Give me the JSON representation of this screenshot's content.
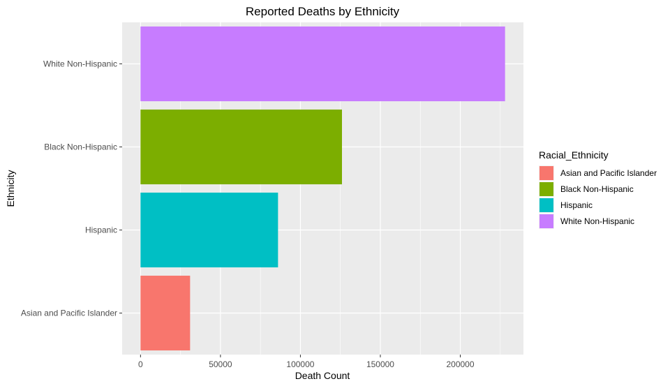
{
  "chart_data": {
    "type": "bar",
    "orientation": "horizontal",
    "title": "Reported Deaths by Ethnicity",
    "xlabel": "Death Count",
    "ylabel": "Ethnicity",
    "categories": [
      "Asian and Pacific Islander",
      "Hispanic",
      "Black Non-Hispanic",
      "White Non-Hispanic"
    ],
    "values": [
      31000,
      86000,
      126000,
      228000
    ],
    "colors": [
      "#F8766D",
      "#00BFC4",
      "#7CAE00",
      "#C77CFF"
    ],
    "xlim": [
      -11500,
      239500
    ],
    "xticks": [
      0,
      50000,
      100000,
      150000,
      200000
    ],
    "xtick_labels": [
      "0",
      "50000",
      "100000",
      "150000",
      "200000"
    ],
    "grid": true,
    "legend": {
      "title": "Racial_Ethnicity",
      "position": "right",
      "entries": [
        {
          "label": "Asian and Pacific Islander",
          "color": "#F8766D"
        },
        {
          "label": "Black Non-Hispanic",
          "color": "#7CAE00"
        },
        {
          "label": "Hispanic",
          "color": "#00BFC4"
        },
        {
          "label": "White Non-Hispanic",
          "color": "#C77CFF"
        }
      ]
    }
  }
}
